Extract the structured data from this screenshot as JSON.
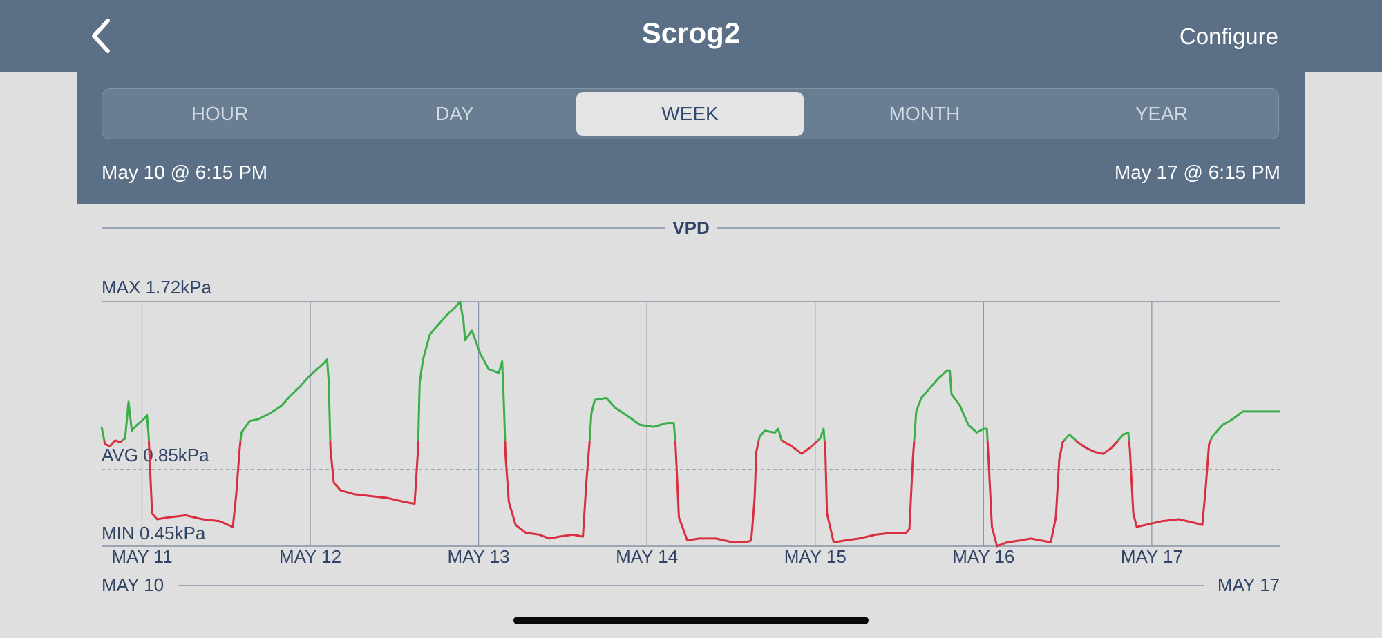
{
  "nav": {
    "title": "Scrog2",
    "configure_label": "Configure",
    "back_icon": "chevron-left-icon"
  },
  "tabs": [
    {
      "label": "HOUR",
      "active": false
    },
    {
      "label": "DAY",
      "active": false
    },
    {
      "label": "WEEK",
      "active": true
    },
    {
      "label": "MONTH",
      "active": false
    },
    {
      "label": "YEAR",
      "active": false
    }
  ],
  "range": {
    "start": "May 10 @ 6:15 PM",
    "end": "May 17 @ 6:15 PM"
  },
  "colors": {
    "header_bg": "#5b6f86",
    "above_avg_line": "#3aae48",
    "below_avg_line": "#d92e40",
    "grid": "#8692a6",
    "label_text": "#2f4467"
  },
  "chart_data": {
    "type": "line",
    "title": "VPD",
    "unit": "kPa",
    "max_label": "MAX 1.72kPa",
    "avg_label": "AVG 0.85kPa",
    "min_label": "MIN 0.45kPa",
    "max": 1.72,
    "avg": 0.85,
    "min": 0.45,
    "ylim": [
      0.45,
      1.72
    ],
    "x_range_days": [
      0,
      7
    ],
    "x_start_label": "MAY 10",
    "x_end_label": "MAY 17",
    "tick_labels": [
      "MAY 11",
      "MAY 12",
      "MAY 13",
      "MAY 14",
      "MAY 15",
      "MAY 16",
      "MAY 17"
    ],
    "tick_days": [
      0.24,
      1.24,
      2.24,
      3.24,
      4.24,
      5.24,
      6.24
    ],
    "color_threshold": 1.0,
    "points": [
      [
        0.0,
        1.07
      ],
      [
        0.02,
        0.98
      ],
      [
        0.05,
        0.97
      ],
      [
        0.08,
        1.0
      ],
      [
        0.11,
        0.99
      ],
      [
        0.14,
        1.01
      ],
      [
        0.16,
        1.2
      ],
      [
        0.18,
        1.05
      ],
      [
        0.21,
        1.08
      ],
      [
        0.25,
        1.11
      ],
      [
        0.27,
        1.13
      ],
      [
        0.28,
        1.02
      ],
      [
        0.3,
        0.62
      ],
      [
        0.33,
        0.59
      ],
      [
        0.4,
        0.6
      ],
      [
        0.5,
        0.61
      ],
      [
        0.6,
        0.59
      ],
      [
        0.7,
        0.58
      ],
      [
        0.78,
        0.55
      ],
      [
        0.8,
        0.72
      ],
      [
        0.82,
        0.95
      ],
      [
        0.83,
        1.04
      ],
      [
        0.88,
        1.1
      ],
      [
        0.93,
        1.11
      ],
      [
        1.0,
        1.14
      ],
      [
        1.07,
        1.18
      ],
      [
        1.12,
        1.23
      ],
      [
        1.18,
        1.28
      ],
      [
        1.23,
        1.33
      ],
      [
        1.28,
        1.37
      ],
      [
        1.32,
        1.4
      ],
      [
        1.34,
        1.42
      ],
      [
        1.35,
        1.3
      ],
      [
        1.36,
        0.95
      ],
      [
        1.38,
        0.78
      ],
      [
        1.42,
        0.74
      ],
      [
        1.5,
        0.72
      ],
      [
        1.6,
        0.71
      ],
      [
        1.7,
        0.7
      ],
      [
        1.8,
        0.68
      ],
      [
        1.86,
        0.67
      ],
      [
        1.88,
        0.95
      ],
      [
        1.89,
        1.3
      ],
      [
        1.91,
        1.42
      ],
      [
        1.95,
        1.55
      ],
      [
        2.0,
        1.6
      ],
      [
        2.05,
        1.65
      ],
      [
        2.1,
        1.69
      ],
      [
        2.13,
        1.72
      ],
      [
        2.15,
        1.62
      ],
      [
        2.16,
        1.52
      ],
      [
        2.2,
        1.57
      ],
      [
        2.25,
        1.45
      ],
      [
        2.3,
        1.37
      ],
      [
        2.36,
        1.35
      ],
      [
        2.38,
        1.41
      ],
      [
        2.39,
        1.2
      ],
      [
        2.4,
        0.92
      ],
      [
        2.42,
        0.68
      ],
      [
        2.46,
        0.56
      ],
      [
        2.52,
        0.52
      ],
      [
        2.6,
        0.51
      ],
      [
        2.66,
        0.49
      ],
      [
        2.72,
        0.5
      ],
      [
        2.8,
        0.51
      ],
      [
        2.86,
        0.5
      ],
      [
        2.88,
        0.78
      ],
      [
        2.9,
        1.0
      ],
      [
        2.91,
        1.14
      ],
      [
        2.93,
        1.21
      ],
      [
        3.0,
        1.22
      ],
      [
        3.05,
        1.17
      ],
      [
        3.12,
        1.13
      ],
      [
        3.2,
        1.08
      ],
      [
        3.28,
        1.07
      ],
      [
        3.36,
        1.09
      ],
      [
        3.4,
        1.09
      ],
      [
        3.41,
        0.98
      ],
      [
        3.43,
        0.6
      ],
      [
        3.48,
        0.48
      ],
      [
        3.55,
        0.49
      ],
      [
        3.65,
        0.49
      ],
      [
        3.75,
        0.47
      ],
      [
        3.83,
        0.47
      ],
      [
        3.86,
        0.48
      ],
      [
        3.88,
        0.7
      ],
      [
        3.89,
        0.94
      ],
      [
        3.91,
        1.02
      ],
      [
        3.94,
        1.05
      ],
      [
        4.0,
        1.04
      ],
      [
        4.02,
        1.06
      ],
      [
        4.04,
        1.0
      ],
      [
        4.1,
        0.97
      ],
      [
        4.16,
        0.93
      ],
      [
        4.22,
        0.97
      ],
      [
        4.27,
        1.01
      ],
      [
        4.29,
        1.06
      ],
      [
        4.3,
        0.95
      ],
      [
        4.31,
        0.62
      ],
      [
        4.35,
        0.47
      ],
      [
        4.42,
        0.48
      ],
      [
        4.5,
        0.49
      ],
      [
        4.6,
        0.51
      ],
      [
        4.7,
        0.52
      ],
      [
        4.78,
        0.52
      ],
      [
        4.8,
        0.54
      ],
      [
        4.82,
        0.9
      ],
      [
        4.84,
        1.15
      ],
      [
        4.87,
        1.22
      ],
      [
        4.92,
        1.27
      ],
      [
        4.97,
        1.32
      ],
      [
        5.02,
        1.36
      ],
      [
        5.04,
        1.36
      ],
      [
        5.05,
        1.24
      ],
      [
        5.1,
        1.18
      ],
      [
        5.15,
        1.08
      ],
      [
        5.2,
        1.04
      ],
      [
        5.24,
        1.06
      ],
      [
        5.26,
        1.06
      ],
      [
        5.27,
        0.9
      ],
      [
        5.29,
        0.55
      ],
      [
        5.32,
        0.45
      ],
      [
        5.38,
        0.47
      ],
      [
        5.46,
        0.48
      ],
      [
        5.52,
        0.49
      ],
      [
        5.58,
        0.48
      ],
      [
        5.64,
        0.47
      ],
      [
        5.67,
        0.6
      ],
      [
        5.69,
        0.9
      ],
      [
        5.71,
        0.99
      ],
      [
        5.75,
        1.03
      ],
      [
        5.8,
        0.99
      ],
      [
        5.85,
        0.96
      ],
      [
        5.9,
        0.94
      ],
      [
        5.95,
        0.93
      ],
      [
        6.0,
        0.96
      ],
      [
        6.04,
        1.0
      ],
      [
        6.07,
        1.03
      ],
      [
        6.1,
        1.04
      ],
      [
        6.11,
        0.95
      ],
      [
        6.13,
        0.62
      ],
      [
        6.15,
        0.55
      ],
      [
        6.2,
        0.56
      ],
      [
        6.3,
        0.58
      ],
      [
        6.4,
        0.59
      ],
      [
        6.5,
        0.57
      ],
      [
        6.54,
        0.56
      ],
      [
        6.56,
        0.75
      ],
      [
        6.58,
        0.98
      ],
      [
        6.6,
        1.02
      ],
      [
        6.66,
        1.08
      ],
      [
        6.72,
        1.11
      ],
      [
        6.78,
        1.15
      ],
      [
        7.0,
        1.15
      ]
    ]
  }
}
